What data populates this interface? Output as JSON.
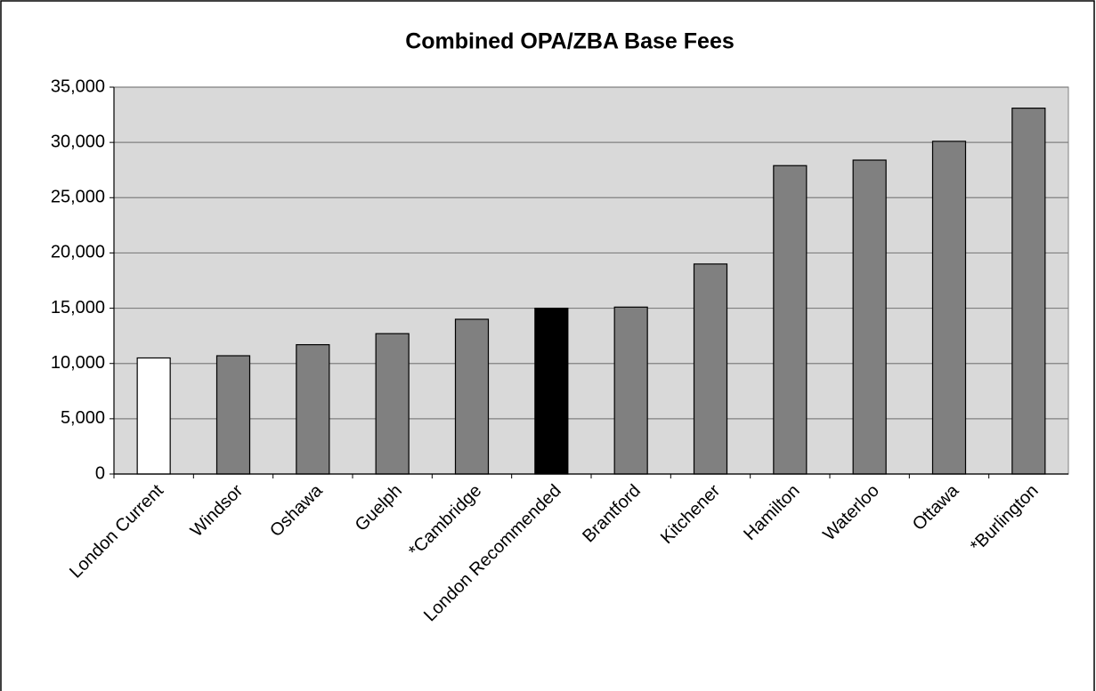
{
  "chart_data": {
    "type": "bar",
    "title": "Combined OPA/ZBA Base Fees",
    "categories": [
      "London Current",
      "Windsor",
      "Oshawa",
      "Guelph",
      "*Cambridge",
      "London Recommended",
      "Brantford",
      "Kitchener",
      "Hamilton",
      "Waterloo",
      "Ottawa",
      "*Burlington"
    ],
    "values": [
      10500,
      10700,
      11700,
      12700,
      14000,
      15000,
      15100,
      19000,
      27900,
      28400,
      30100,
      33100
    ],
    "colors": [
      "#ffffff",
      "#808080",
      "#808080",
      "#808080",
      "#808080",
      "#000000",
      "#808080",
      "#808080",
      "#808080",
      "#808080",
      "#808080",
      "#808080"
    ],
    "ylim": [
      0,
      35000
    ],
    "yticks": [
      0,
      {
        "value": 5000,
        "label": "5,000"
      },
      {
        "value": 10000,
        "label": "10,000"
      },
      {
        "value": 15000,
        "label": "15,000"
      },
      {
        "value": 20000,
        "label": "20,000"
      },
      {
        "value": 25000,
        "label": "25,000"
      },
      {
        "value": 30000,
        "label": "30,000"
      },
      {
        "value": 35000,
        "label": "35,000"
      }
    ],
    "grid": true,
    "plot_background": "#d9d9d9"
  }
}
